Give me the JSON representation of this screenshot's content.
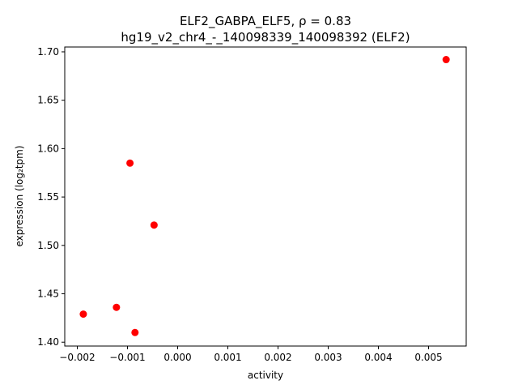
{
  "chart_data": {
    "type": "scatter",
    "title_line1": "ELF2_GABPA_ELF5, ρ = 0.83",
    "title_line2": "hg19_v2_chr4_-_140098339_140098392 (ELF2)",
    "xlabel": "activity",
    "ylabel": "expression (log₂tpm)",
    "xlim": [
      -0.00225,
      0.00575
    ],
    "ylim": [
      1.396,
      1.705
    ],
    "x_ticks": [
      -0.002,
      -0.001,
      0.0,
      0.001,
      0.002,
      0.003,
      0.004,
      0.005
    ],
    "x_tick_labels": [
      "−0.002",
      "−0.001",
      "0.000",
      "0.001",
      "0.002",
      "0.003",
      "0.004",
      "0.005"
    ],
    "y_ticks": [
      1.4,
      1.45,
      1.5,
      1.55,
      1.6,
      1.65,
      1.7
    ],
    "y_tick_labels": [
      "1.40",
      "1.45",
      "1.50",
      "1.55",
      "1.60",
      "1.65",
      "1.70"
    ],
    "grid": false,
    "point_color": "#ff0000",
    "points": [
      {
        "x": -0.00188,
        "y": 1.429
      },
      {
        "x": -0.00122,
        "y": 1.436
      },
      {
        "x": -0.00095,
        "y": 1.585
      },
      {
        "x": -0.00085,
        "y": 1.41
      },
      {
        "x": -0.00047,
        "y": 1.521
      },
      {
        "x": 0.00535,
        "y": 1.692
      }
    ]
  }
}
